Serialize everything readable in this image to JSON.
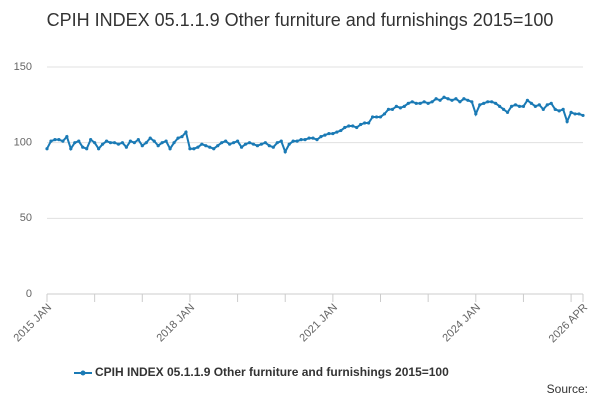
{
  "chart_data": {
    "type": "line",
    "title": "CPIH INDEX 05.1.1.9 Other furniture and furnishings 2015=100",
    "source": "Source:",
    "categories": [
      "2015 JAN",
      null,
      null,
      null,
      null,
      null,
      null,
      null,
      null,
      null,
      null,
      null,
      null,
      null,
      null,
      null,
      null,
      null,
      null,
      null,
      null,
      null,
      null,
      null,
      null,
      null,
      null,
      null,
      null,
      null,
      null,
      null,
      null,
      null,
      null,
      null,
      "2018 JAN",
      null,
      null,
      null,
      null,
      null,
      null,
      null,
      null,
      null,
      null,
      null,
      null,
      null,
      null,
      null,
      null,
      null,
      null,
      null,
      null,
      null,
      null,
      null,
      null,
      null,
      null,
      null,
      null,
      null,
      null,
      null,
      null,
      null,
      null,
      null,
      "2021 JAN",
      null,
      null,
      null,
      null,
      null,
      null,
      null,
      null,
      null,
      null,
      null,
      null,
      null,
      null,
      null,
      null,
      null,
      null,
      null,
      null,
      null,
      null,
      null,
      null,
      null,
      null,
      null,
      null,
      null,
      null,
      null,
      null,
      null,
      null,
      null,
      "2024 JAN",
      null,
      null,
      null,
      null,
      null,
      null,
      null,
      null,
      null,
      null,
      null,
      null,
      null,
      null,
      null,
      null,
      null,
      null,
      null,
      null,
      null,
      null,
      null,
      null,
      null,
      null,
      "2026 APR"
    ],
    "series": [
      {
        "name": "CPIH INDEX 05.1.1.9 Other furniture and furnishings 2015=100",
        "color": "#1a7ab5",
        "values": [
          96,
          101,
          102,
          102,
          101,
          104,
          96,
          100,
          101,
          97,
          96,
          102,
          100,
          96,
          99,
          101,
          100,
          100,
          99,
          100,
          97,
          101,
          100,
          102,
          98,
          100,
          103,
          101,
          98,
          100,
          101,
          96,
          100,
          103,
          104,
          107,
          96,
          96,
          97,
          99,
          98,
          97,
          96,
          98,
          100,
          101,
          99,
          100,
          101,
          97,
          99,
          100,
          99,
          98,
          99,
          100,
          98,
          97,
          100,
          101,
          94,
          99,
          101,
          101,
          102,
          102,
          103,
          103,
          102,
          104,
          105,
          106,
          106,
          107,
          108,
          110,
          111,
          111,
          110,
          112,
          113,
          113,
          117,
          117,
          117,
          119,
          122,
          122,
          124,
          123,
          124,
          126,
          127,
          126,
          126,
          127,
          126,
          127,
          129,
          128,
          130,
          129,
          128,
          129,
          127,
          129,
          128,
          127,
          119,
          125,
          126,
          127,
          127,
          126,
          124,
          122,
          120,
          124,
          125,
          124,
          124,
          128,
          126,
          124,
          125,
          122,
          125,
          126,
          122,
          121,
          122,
          114,
          120,
          119,
          119,
          118
        ]
      }
    ],
    "ylim": [
      0,
      150
    ],
    "yticks": [
      0,
      50,
      100,
      150
    ],
    "grid": true,
    "legend": "bottom"
  }
}
